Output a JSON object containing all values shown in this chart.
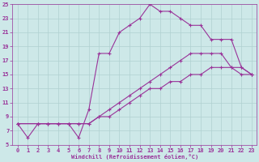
{
  "xlabel": "Windchill (Refroidissement éolien,°C)",
  "xlim": [
    -0.5,
    23.5
  ],
  "ylim": [
    5,
    25
  ],
  "yticks": [
    5,
    7,
    9,
    11,
    13,
    15,
    17,
    19,
    21,
    23,
    25
  ],
  "xticks": [
    0,
    1,
    2,
    3,
    4,
    5,
    6,
    7,
    8,
    9,
    10,
    11,
    12,
    13,
    14,
    15,
    16,
    17,
    18,
    19,
    20,
    21,
    22,
    23
  ],
  "background_color": "#cde8e8",
  "line_color": "#993399",
  "grid_color": "#b0d0d0",
  "figsize": [
    3.2,
    2.0
  ],
  "dpi": 100,
  "lines": [
    {
      "x": [
        0,
        2,
        3,
        4,
        5,
        6,
        7,
        8,
        9,
        10,
        11,
        12,
        13,
        14,
        15,
        16,
        17,
        18,
        19,
        20,
        21,
        22,
        23
      ],
      "y": [
        8,
        8,
        8,
        8,
        8,
        8,
        8,
        9,
        9,
        10,
        11,
        12,
        13,
        13,
        14,
        14,
        15,
        15,
        16,
        16,
        16,
        15,
        15
      ]
    },
    {
      "x": [
        0,
        2,
        3,
        4,
        5,
        6,
        7,
        8,
        9,
        10,
        11,
        12,
        13,
        14,
        15,
        16,
        17,
        18,
        19,
        20,
        21,
        22,
        23
      ],
      "y": [
        8,
        8,
        8,
        8,
        8,
        8,
        8,
        9,
        10,
        11,
        12,
        13,
        14,
        15,
        16,
        17,
        18,
        18,
        18,
        18,
        16,
        16,
        15
      ]
    },
    {
      "x": [
        0,
        1,
        2,
        3,
        4,
        5,
        6,
        7,
        8,
        9,
        10,
        11,
        12,
        13,
        14,
        15,
        16,
        17,
        18,
        19,
        20,
        21,
        22,
        23
      ],
      "y": [
        8,
        6,
        8,
        8,
        8,
        8,
        6,
        10,
        18,
        18,
        21,
        22,
        23,
        25,
        24,
        24,
        23,
        22,
        22,
        20,
        20,
        20,
        16,
        15
      ]
    }
  ]
}
